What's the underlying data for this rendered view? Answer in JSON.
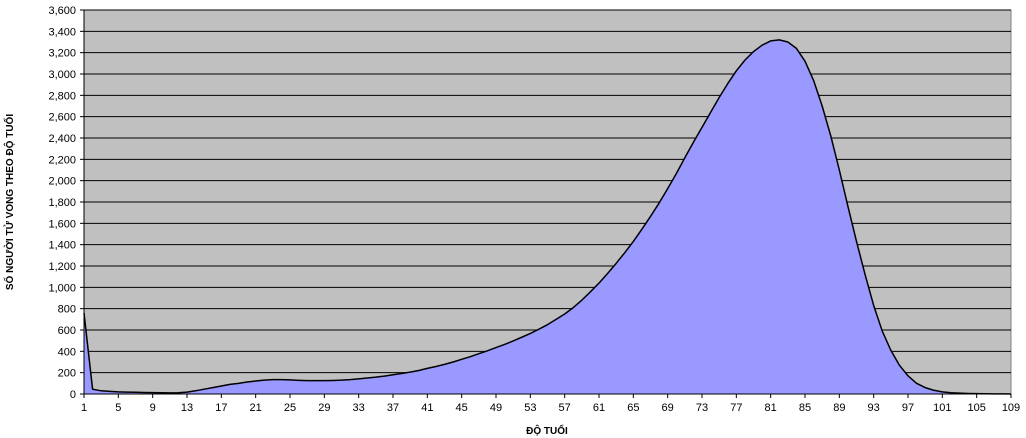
{
  "chart_data": {
    "type": "area",
    "title": "",
    "xlabel": "ĐỘ TUỔI",
    "ylabel": "SỐ NGƯỜI TỬ VONG THEO ĐỘ TUỔI",
    "ylim": [
      0,
      3600
    ],
    "xlim": [
      1,
      109
    ],
    "grid": true,
    "legend": "none",
    "colors": {
      "plot_background": "#c0c0c0",
      "area_fill": "#9999ff",
      "line": "#000000",
      "grid": "#000000"
    },
    "y_ticks": [
      {
        "value": 0,
        "label": "0"
      },
      {
        "value": 200,
        "label": "200"
      },
      {
        "value": 400,
        "label": "400"
      },
      {
        "value": 600,
        "label": "600"
      },
      {
        "value": 800,
        "label": "800"
      },
      {
        "value": 1000,
        "label": "1,000"
      },
      {
        "value": 1200,
        "label": "1,200"
      },
      {
        "value": 1400,
        "label": "1,400"
      },
      {
        "value": 1600,
        "label": "1,600"
      },
      {
        "value": 1800,
        "label": "1,800"
      },
      {
        "value": 2000,
        "label": "2,000"
      },
      {
        "value": 2200,
        "label": "2,200"
      },
      {
        "value": 2400,
        "label": "2,400"
      },
      {
        "value": 2600,
        "label": "2,600"
      },
      {
        "value": 2800,
        "label": "2,800"
      },
      {
        "value": 3000,
        "label": "3,000"
      },
      {
        "value": 3200,
        "label": "3,200"
      },
      {
        "value": 3400,
        "label": "3,400"
      },
      {
        "value": 3600,
        "label": "3,600"
      }
    ],
    "x_ticks": [
      {
        "value": 1,
        "label": "1"
      },
      {
        "value": 5,
        "label": "5"
      },
      {
        "value": 9,
        "label": "9"
      },
      {
        "value": 13,
        "label": "13"
      },
      {
        "value": 17,
        "label": "17"
      },
      {
        "value": 21,
        "label": "21"
      },
      {
        "value": 25,
        "label": "25"
      },
      {
        "value": 29,
        "label": "29"
      },
      {
        "value": 33,
        "label": "33"
      },
      {
        "value": 37,
        "label": "37"
      },
      {
        "value": 41,
        "label": "41"
      },
      {
        "value": 45,
        "label": "45"
      },
      {
        "value": 49,
        "label": "49"
      },
      {
        "value": 53,
        "label": "53"
      },
      {
        "value": 57,
        "label": "57"
      },
      {
        "value": 61,
        "label": "61"
      },
      {
        "value": 65,
        "label": "65"
      },
      {
        "value": 69,
        "label": "69"
      },
      {
        "value": 73,
        "label": "73"
      },
      {
        "value": 77,
        "label": "77"
      },
      {
        "value": 81,
        "label": "81"
      },
      {
        "value": 85,
        "label": "85"
      },
      {
        "value": 89,
        "label": "89"
      },
      {
        "value": 93,
        "label": "93"
      },
      {
        "value": 97,
        "label": "97"
      },
      {
        "value": 101,
        "label": "101"
      },
      {
        "value": 105,
        "label": "105"
      },
      {
        "value": 109,
        "label": "109"
      }
    ],
    "series": [
      {
        "x": [
          1,
          2,
          3,
          4,
          5,
          6,
          7,
          8,
          9,
          10,
          11,
          12,
          13,
          14,
          15,
          16,
          17,
          18,
          19,
          20,
          21,
          22,
          23,
          24,
          25,
          26,
          27,
          28,
          29,
          30,
          31,
          32,
          33,
          34,
          35,
          36,
          37,
          38,
          39,
          40,
          41,
          42,
          43,
          44,
          45,
          46,
          47,
          48,
          49,
          50,
          51,
          52,
          53,
          54,
          55,
          56,
          57,
          58,
          59,
          60,
          61,
          62,
          63,
          64,
          65,
          66,
          67,
          68,
          69,
          70,
          71,
          72,
          73,
          74,
          75,
          76,
          77,
          78,
          79,
          80,
          81,
          82,
          83,
          84,
          85,
          86,
          87,
          88,
          89,
          90,
          91,
          92,
          93,
          94,
          95,
          96,
          97,
          98,
          99,
          100,
          101,
          102,
          103,
          104,
          105,
          106,
          107,
          108,
          109
        ],
        "values": [
          760,
          45,
          30,
          25,
          20,
          18,
          16,
          14,
          13,
          12,
          11,
          12,
          18,
          30,
          45,
          60,
          75,
          90,
          100,
          112,
          122,
          130,
          135,
          135,
          132,
          128,
          125,
          125,
          125,
          127,
          130,
          135,
          142,
          150,
          158,
          168,
          180,
          192,
          205,
          220,
          240,
          258,
          278,
          300,
          325,
          350,
          378,
          405,
          435,
          465,
          497,
          532,
          568,
          608,
          650,
          700,
          750,
          810,
          880,
          958,
          1040,
          1130,
          1225,
          1325,
          1430,
          1545,
          1665,
          1790,
          1925,
          2065,
          2215,
          2360,
          2500,
          2640,
          2780,
          2910,
          3030,
          3130,
          3210,
          3270,
          3310,
          3320,
          3300,
          3240,
          3120,
          2940,
          2700,
          2420,
          2100,
          1760,
          1430,
          1120,
          830,
          590,
          410,
          270,
          170,
          100,
          60,
          35,
          20,
          12,
          8,
          5,
          3,
          2,
          1,
          1,
          0
        ]
      }
    ]
  }
}
